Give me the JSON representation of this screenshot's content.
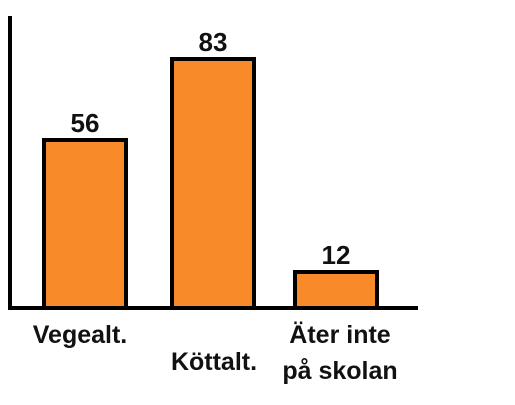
{
  "chart_data": {
    "type": "bar",
    "categories": [
      "Vegealt.",
      "Köttalt.",
      "Äter inte på skolan"
    ],
    "category_lines": [
      [
        "Vegealt."
      ],
      [
        "Köttalt."
      ],
      [
        "Äter inte",
        "på skolan"
      ]
    ],
    "values": [
      56,
      83,
      12
    ],
    "data_labels": [
      "56",
      "83",
      "12"
    ],
    "title": "",
    "xlabel": "",
    "ylabel": "",
    "ylim": [
      0,
      100
    ],
    "grid": false,
    "legend": "none"
  },
  "colors": {
    "bar_fill": "#F88A2A",
    "bar_stroke": "#000000",
    "axis": "#000000",
    "text": "#111111"
  }
}
